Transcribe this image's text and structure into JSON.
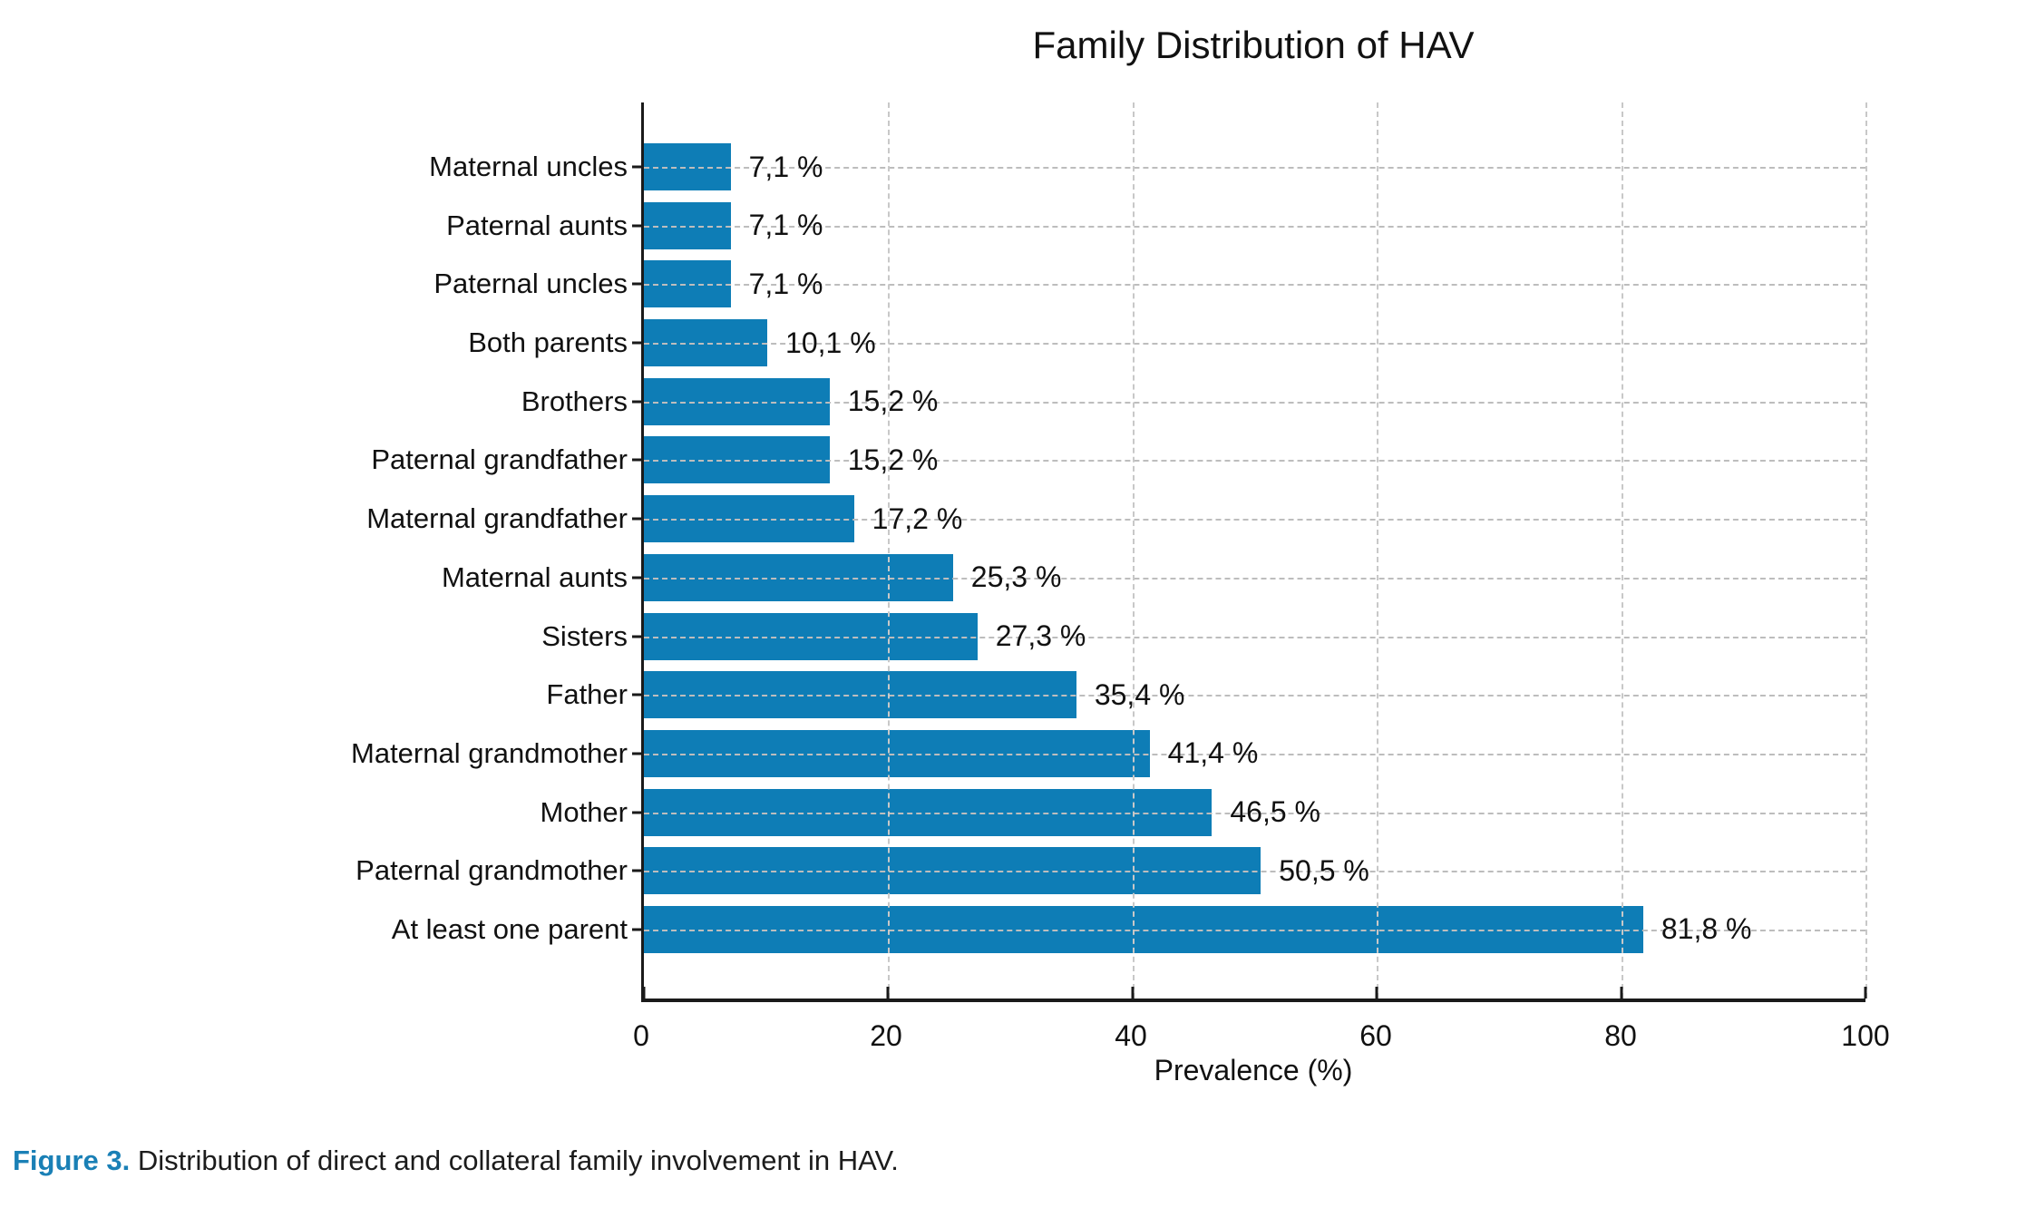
{
  "title": "Family Distribution of HAV",
  "caption": {
    "label": "Figure 3.",
    "text": " Distribution of direct and collateral family involvement in HAV."
  },
  "chart_data": {
    "type": "bar",
    "orientation": "horizontal",
    "title": "Family Distribution of HAV",
    "xlabel": "Prevalence (%)",
    "ylabel": "",
    "xlim": [
      0,
      100
    ],
    "xticks": [
      0,
      20,
      40,
      60,
      80,
      100
    ],
    "grid": true,
    "legend": false,
    "bar_color": "#0e7db6",
    "categories": [
      "Maternal uncles",
      "Paternal aunts",
      "Paternal uncles",
      "Both parents",
      "Brothers",
      "Paternal grandfather",
      "Maternal grandfather",
      "Maternal aunts",
      "Sisters",
      "Father",
      "Maternal grandmother",
      "Mother",
      "Paternal grandmother",
      "At least one parent"
    ],
    "values": [
      7.1,
      7.1,
      7.1,
      10.1,
      15.2,
      15.2,
      17.2,
      25.3,
      27.3,
      35.4,
      41.4,
      46.5,
      50.5,
      81.8
    ],
    "value_labels": [
      "7,1 %",
      "7,1 %",
      "7,1 %",
      "10,1 %",
      "15,2 %",
      "15,2 %",
      "17,2 %",
      "25,3 %",
      "27,3 %",
      "35,4 %",
      "41,4 %",
      "46,5 %",
      "50,5 %",
      "81,8 %"
    ]
  }
}
